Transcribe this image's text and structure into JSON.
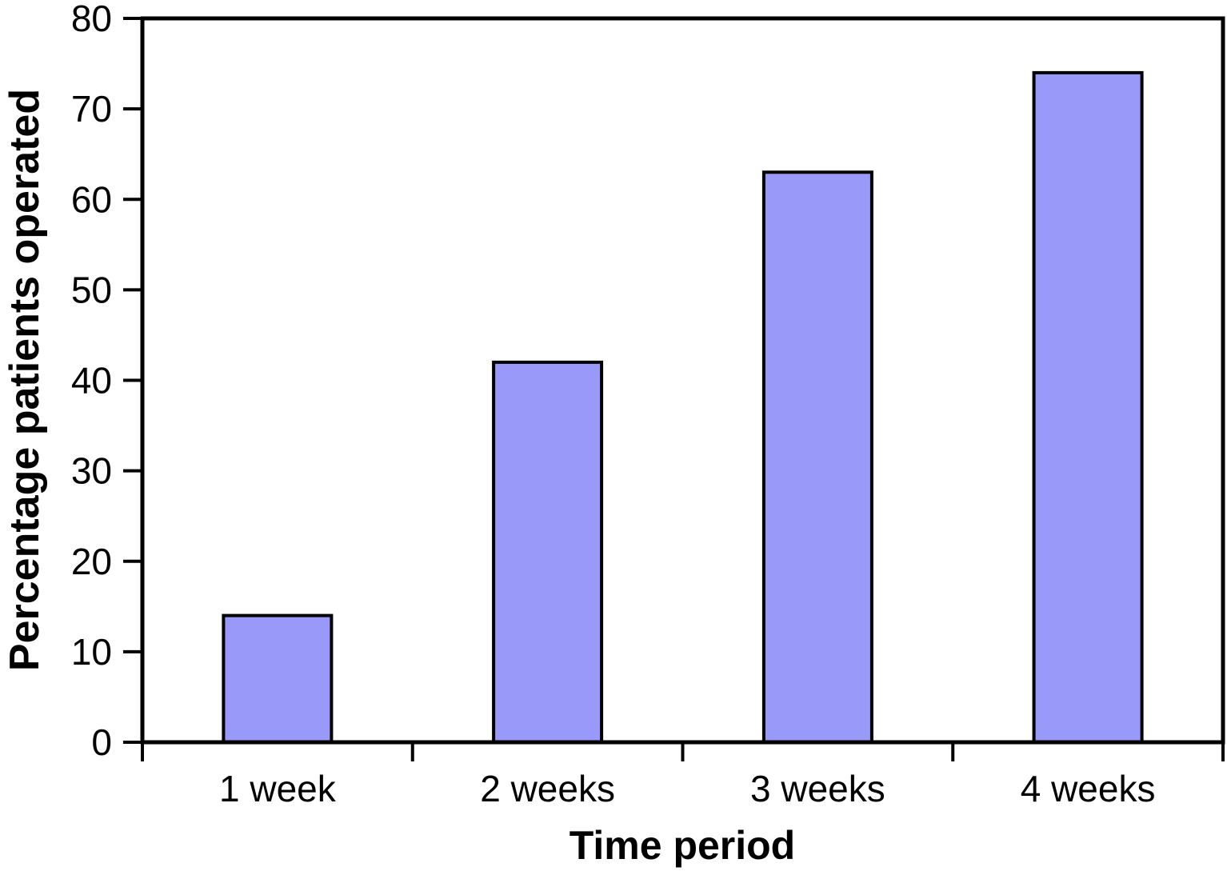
{
  "chart_data": {
    "type": "bar",
    "categories": [
      "1 week",
      "2 weeks",
      "3 weeks",
      "4 weeks"
    ],
    "values": [
      14,
      42,
      63,
      74
    ],
    "title": "",
    "xlabel": "Time period",
    "ylabel": "Percentage patients operated",
    "ylim": [
      0,
      80
    ],
    "yticks": [
      0,
      10,
      20,
      30,
      40,
      50,
      60,
      70,
      80
    ],
    "grid": false,
    "legend": null,
    "colors": {
      "bar_fill": "#9999FA",
      "bar_border": "#000000",
      "axis": "#000000",
      "text": "#000000",
      "background": "#FFFFFF"
    }
  }
}
